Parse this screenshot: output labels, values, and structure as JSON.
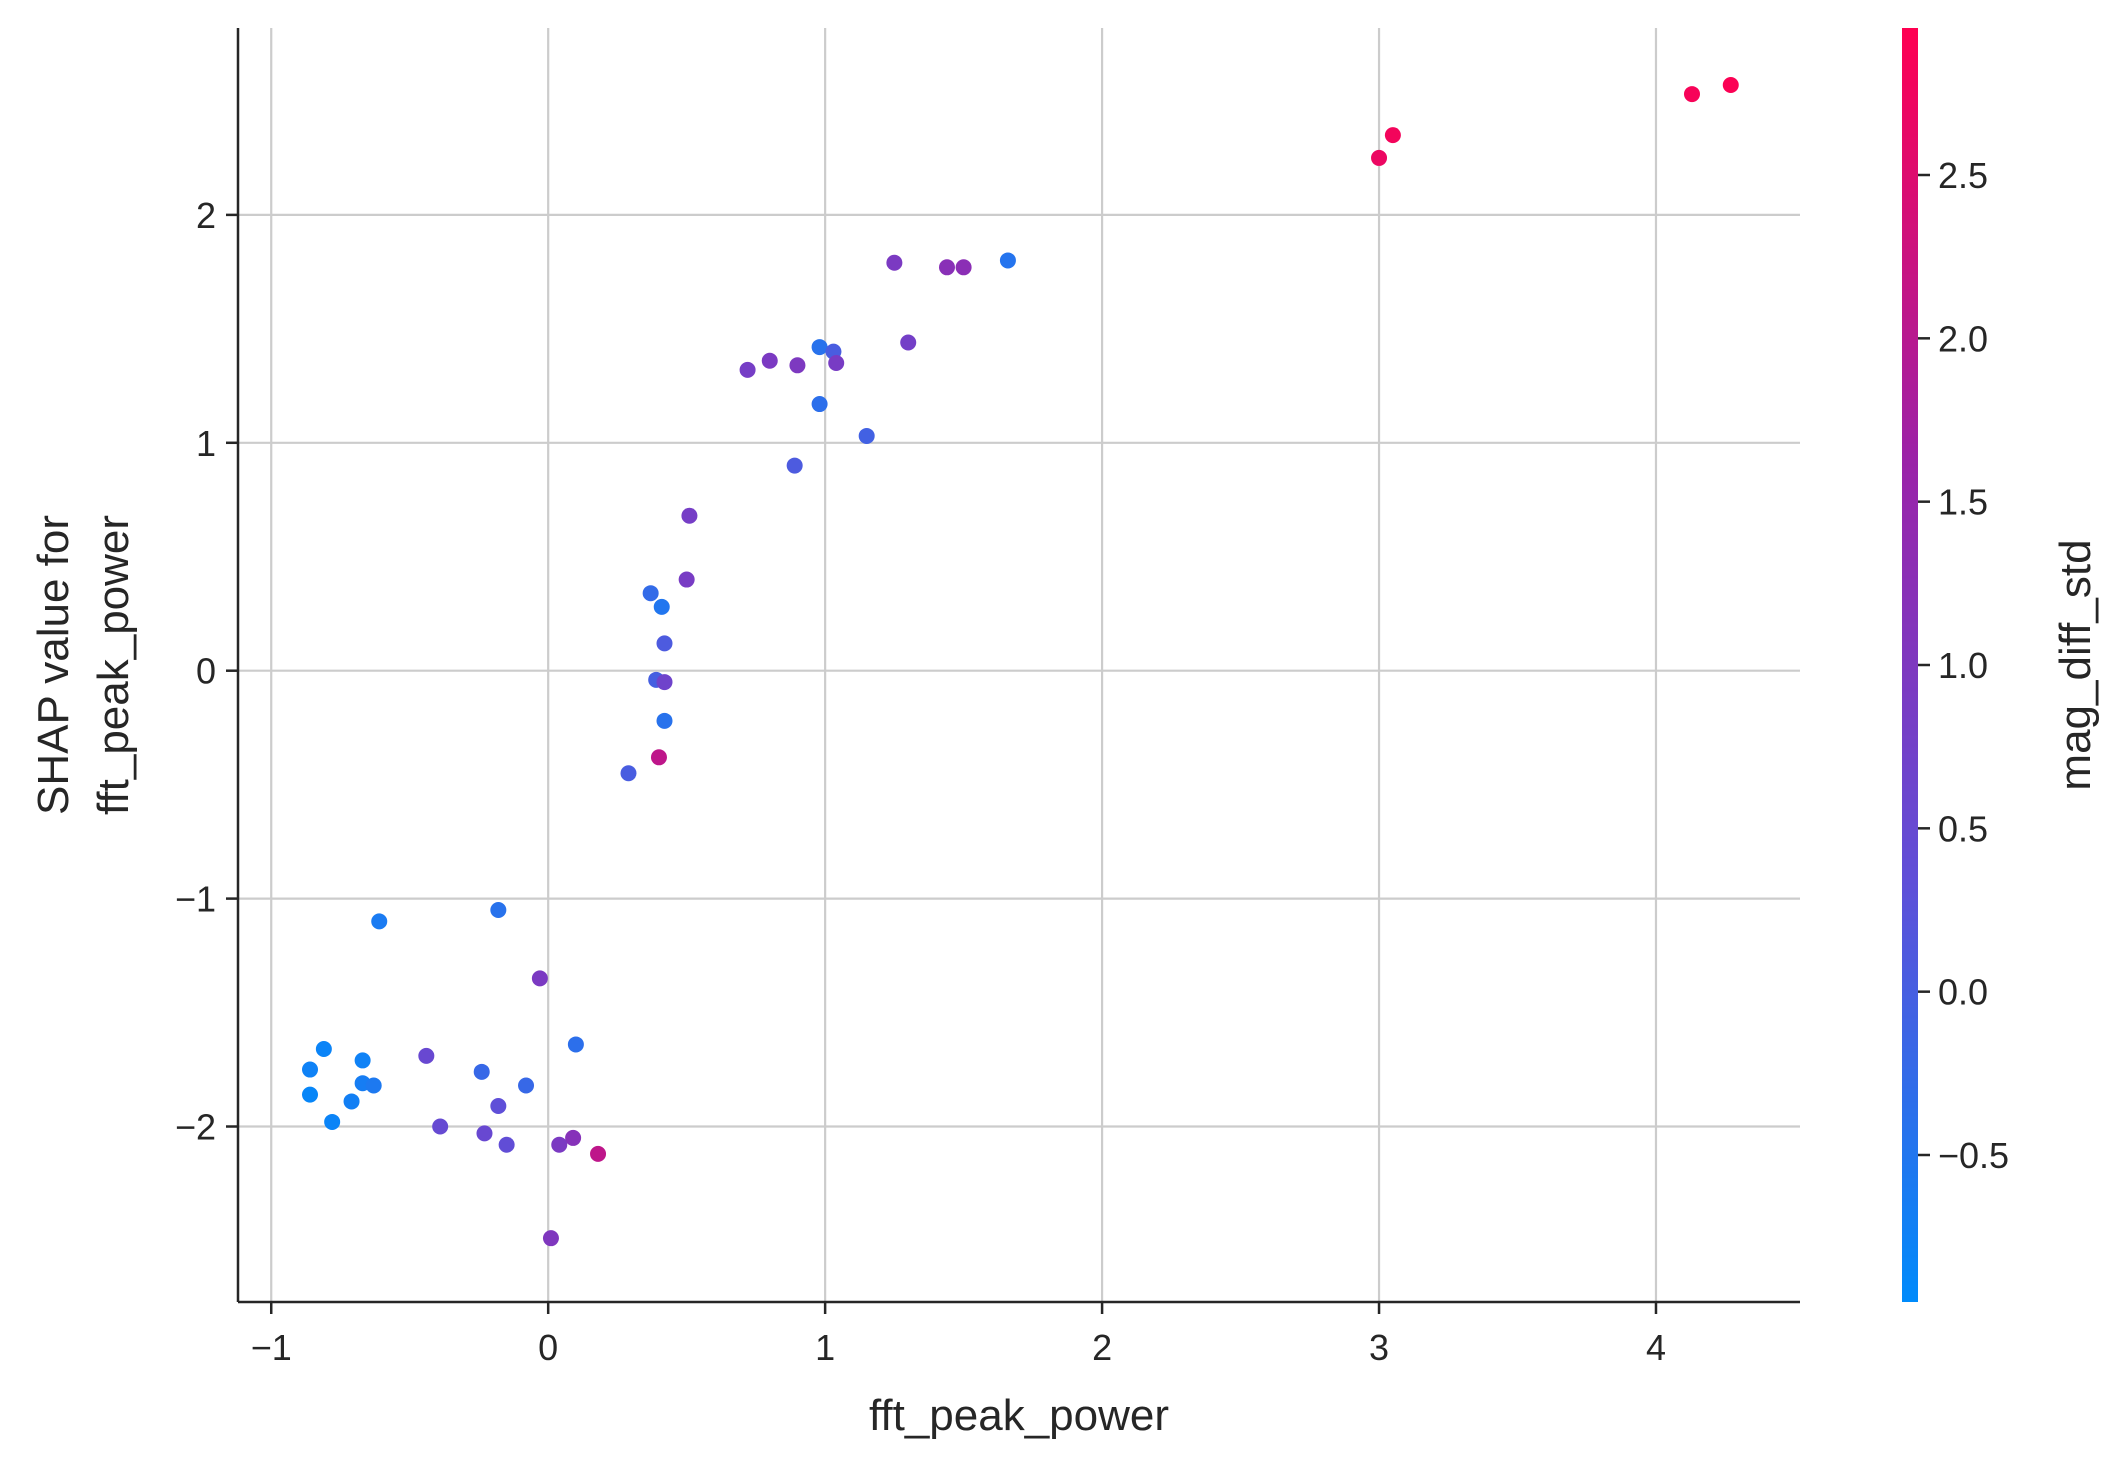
{
  "chart_data": {
    "type": "scatter",
    "title": "",
    "xlabel": "fft_peak_power",
    "ylabel_lines": [
      "SHAP value for",
      "fft_peak_power"
    ],
    "xlim": [
      -1.12,
      4.52
    ],
    "ylim": [
      -2.77,
      2.82
    ],
    "x_ticks": [
      -1,
      0,
      1,
      2,
      3,
      4
    ],
    "x_tick_labels": [
      "−1",
      "0",
      "1",
      "2",
      "3",
      "4"
    ],
    "y_ticks": [
      -2,
      -1,
      0,
      1,
      2
    ],
    "y_tick_labels": [
      "−2",
      "−1",
      "0",
      "1",
      "2"
    ],
    "grid": true,
    "colorbar": {
      "label": "mag_diff_std",
      "range": [
        -0.95,
        2.95
      ],
      "ticks": [
        -0.5,
        0.0,
        0.5,
        1.0,
        1.5,
        2.0,
        2.5
      ],
      "tick_labels": [
        "−0.5",
        "0.0",
        "0.5",
        "1.0",
        "1.5",
        "2.0",
        "2.5"
      ],
      "colors": [
        "#008bfb",
        "#5f4fd8",
        "#9b22a8",
        "#ff0051"
      ]
    },
    "points": [
      {
        "x": 4.27,
        "y": 2.57,
        "c": 2.9
      },
      {
        "x": 4.13,
        "y": 2.53,
        "c": 2.85
      },
      {
        "x": 3.05,
        "y": 2.35,
        "c": 2.8
      },
      {
        "x": 3.0,
        "y": 2.25,
        "c": 2.7
      },
      {
        "x": 1.66,
        "y": 1.8,
        "c": -0.45
      },
      {
        "x": 1.25,
        "y": 1.79,
        "c": 0.95
      },
      {
        "x": 1.44,
        "y": 1.77,
        "c": 1.25
      },
      {
        "x": 1.5,
        "y": 1.77,
        "c": 1.3
      },
      {
        "x": 1.3,
        "y": 1.44,
        "c": 0.8
      },
      {
        "x": 0.98,
        "y": 1.42,
        "c": -0.4
      },
      {
        "x": 1.03,
        "y": 1.4,
        "c": 0.05
      },
      {
        "x": 0.8,
        "y": 1.36,
        "c": 0.95
      },
      {
        "x": 1.04,
        "y": 1.35,
        "c": 0.9
      },
      {
        "x": 0.9,
        "y": 1.34,
        "c": 1.0
      },
      {
        "x": 0.72,
        "y": 1.32,
        "c": 0.85
      },
      {
        "x": 0.98,
        "y": 1.17,
        "c": -0.35
      },
      {
        "x": 1.15,
        "y": 1.03,
        "c": -0.05
      },
      {
        "x": 0.89,
        "y": 0.9,
        "c": 0.1
      },
      {
        "x": 0.51,
        "y": 0.68,
        "c": 0.85
      },
      {
        "x": 0.5,
        "y": 0.4,
        "c": 0.9
      },
      {
        "x": 0.37,
        "y": 0.34,
        "c": -0.25
      },
      {
        "x": 0.41,
        "y": 0.28,
        "c": -0.5
      },
      {
        "x": 0.42,
        "y": 0.12,
        "c": 0.1
      },
      {
        "x": 0.39,
        "y": -0.04,
        "c": 0.0
      },
      {
        "x": 0.42,
        "y": -0.05,
        "c": 0.7
      },
      {
        "x": 0.42,
        "y": -0.22,
        "c": -0.4
      },
      {
        "x": 0.4,
        "y": -0.38,
        "c": 2.1
      },
      {
        "x": 0.29,
        "y": -0.45,
        "c": 0.05
      },
      {
        "x": -0.61,
        "y": -1.1,
        "c": -0.6
      },
      {
        "x": -0.18,
        "y": -1.05,
        "c": -0.4
      },
      {
        "x": -0.03,
        "y": -1.35,
        "c": 0.95
      },
      {
        "x": 0.1,
        "y": -1.64,
        "c": -0.35
      },
      {
        "x": -0.81,
        "y": -1.66,
        "c": -0.8
      },
      {
        "x": -0.44,
        "y": -1.69,
        "c": 0.55
      },
      {
        "x": -0.67,
        "y": -1.71,
        "c": -0.75
      },
      {
        "x": -0.86,
        "y": -1.75,
        "c": -0.75
      },
      {
        "x": -0.24,
        "y": -1.76,
        "c": -0.2
      },
      {
        "x": -0.67,
        "y": -1.81,
        "c": -0.65
      },
      {
        "x": -0.63,
        "y": -1.82,
        "c": -0.55
      },
      {
        "x": -0.08,
        "y": -1.82,
        "c": -0.2
      },
      {
        "x": -0.86,
        "y": -1.86,
        "c": -0.85
      },
      {
        "x": -0.71,
        "y": -1.89,
        "c": -0.7
      },
      {
        "x": -0.18,
        "y": -1.91,
        "c": 0.35
      },
      {
        "x": -0.78,
        "y": -1.98,
        "c": -0.8
      },
      {
        "x": -0.39,
        "y": -2.0,
        "c": 0.5
      },
      {
        "x": -0.23,
        "y": -2.03,
        "c": 0.55
      },
      {
        "x": 0.09,
        "y": -2.05,
        "c": 1.2
      },
      {
        "x": -0.15,
        "y": -2.08,
        "c": 0.4
      },
      {
        "x": 0.04,
        "y": -2.08,
        "c": 0.95
      },
      {
        "x": 0.18,
        "y": -2.12,
        "c": 2.1
      },
      {
        "x": 0.01,
        "y": -2.49,
        "c": 1.05
      }
    ]
  }
}
